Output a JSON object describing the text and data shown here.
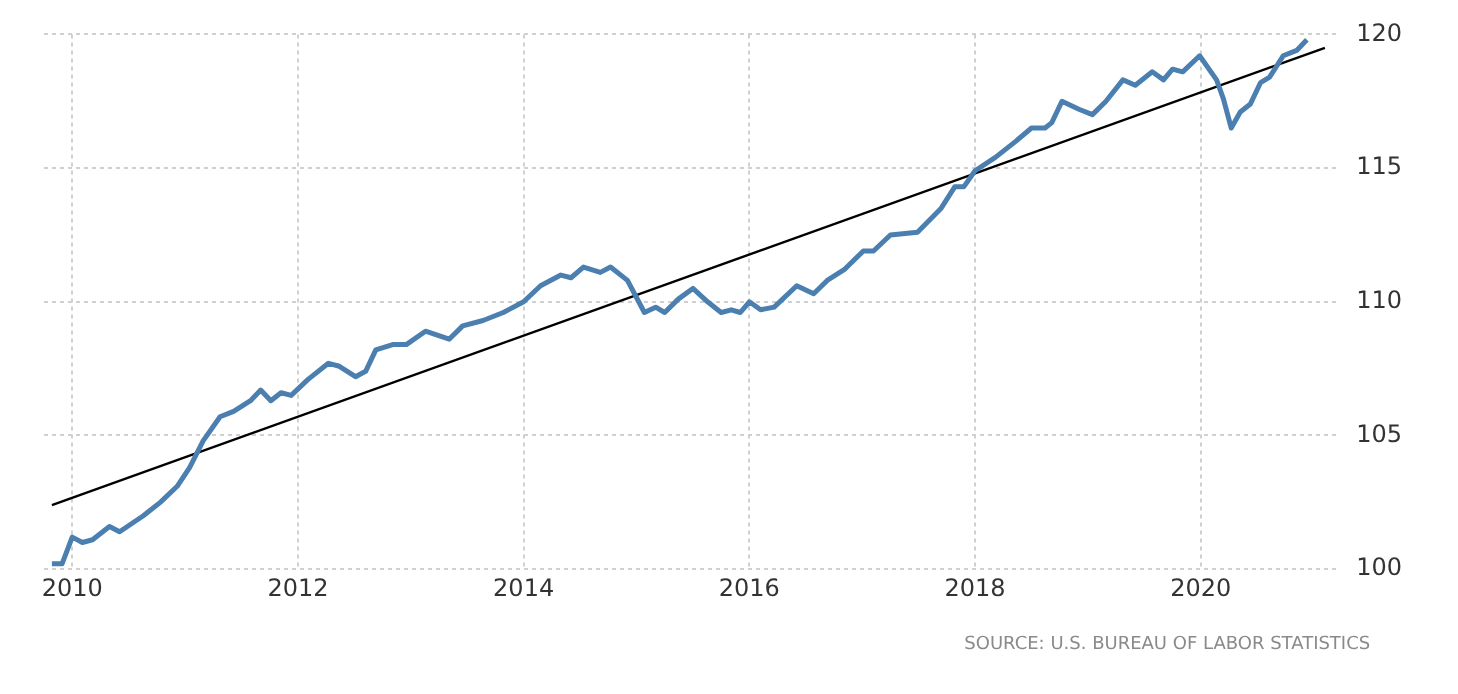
{
  "chart_data": {
    "type": "line",
    "xlim": [
      2009.75,
      2021.2
    ],
    "xticks": [
      2010,
      2012,
      2014,
      2016,
      2018,
      2020
    ],
    "ylim": [
      100,
      120
    ],
    "yticks": [
      100,
      105,
      110,
      115,
      120
    ],
    "grid": true,
    "legend": false,
    "marker": "none",
    "line_style": "solid",
    "annotations": [
      "SOURCE: U.S. BUREAU OF LABOR STATISTICS"
    ],
    "series": [
      {
        "color": "#4a7fb0",
        "x": [
          2009.82,
          2009.91,
          2010.0,
          2010.09,
          2010.18,
          2010.33,
          2010.42,
          2010.63,
          2010.78,
          2010.93,
          2011.04,
          2011.16,
          2011.31,
          2011.43,
          2011.58,
          2011.67,
          2011.76,
          2011.85,
          2011.94,
          2012.09,
          2012.27,
          2012.36,
          2012.51,
          2012.6,
          2012.69,
          2012.84,
          2012.96,
          2013.13,
          2013.34,
          2013.46,
          2013.64,
          2013.82,
          2014.0,
          2014.15,
          2014.33,
          2014.42,
          2014.53,
          2014.68,
          2014.77,
          2014.92,
          2015.07,
          2015.17,
          2015.25,
          2015.37,
          2015.5,
          2015.63,
          2015.75,
          2015.84,
          2015.92,
          2016.0,
          2016.1,
          2016.22,
          2016.42,
          2016.57,
          2016.69,
          2016.84,
          2017.01,
          2017.1,
          2017.25,
          2017.49,
          2017.7,
          2017.82,
          2017.9,
          2018.0,
          2018.18,
          2018.36,
          2018.5,
          2018.62,
          2018.68,
          2018.77,
          2018.92,
          2019.04,
          2019.16,
          2019.31,
          2019.42,
          2019.57,
          2019.67,
          2019.75,
          2019.84,
          2019.99,
          2020.14,
          2020.2,
          2020.27,
          2020.35,
          2020.44,
          2020.53,
          2020.61,
          2020.73,
          2020.85,
          2020.94
        ],
        "values": [
          100.2,
          100.2,
          101.2,
          101.0,
          101.1,
          101.6,
          101.4,
          102.0,
          102.5,
          103.1,
          103.8,
          104.8,
          105.7,
          105.9,
          106.3,
          106.7,
          106.3,
          106.6,
          106.5,
          107.1,
          107.7,
          107.6,
          107.2,
          107.4,
          108.2,
          108.4,
          108.4,
          108.9,
          108.6,
          109.1,
          109.3,
          109.6,
          110.0,
          110.6,
          111.0,
          110.9,
          111.3,
          111.1,
          111.3,
          110.8,
          109.6,
          109.8,
          109.6,
          110.1,
          110.5,
          110.0,
          109.6,
          109.7,
          109.6,
          110.0,
          109.7,
          109.8,
          110.6,
          110.3,
          110.8,
          111.2,
          111.9,
          111.9,
          112.5,
          112.6,
          113.5,
          114.3,
          114.3,
          114.9,
          115.4,
          116.0,
          116.5,
          116.5,
          116.7,
          117.5,
          117.2,
          117.0,
          117.5,
          118.3,
          118.1,
          118.6,
          118.3,
          118.7,
          118.6,
          119.2,
          118.3,
          117.6,
          116.5,
          117.1,
          117.4,
          118.2,
          118.4,
          119.2,
          119.4,
          119.8
        ]
      },
      {
        "type": "line",
        "color": "#000000",
        "x": [
          2009.82,
          2021.1
        ],
        "values": [
          102.4,
          119.5
        ]
      }
    ]
  }
}
